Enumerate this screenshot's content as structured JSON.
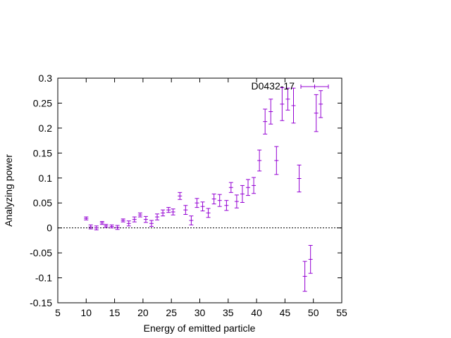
{
  "chart_data": {
    "type": "scatter",
    "xlabel": "Energy of emitted particle",
    "ylabel": "Analyzing power",
    "xlim": [
      5,
      55
    ],
    "ylim": [
      -0.15,
      0.3
    ],
    "xticks": [
      5,
      10,
      15,
      20,
      25,
      30,
      35,
      40,
      45,
      50,
      55
    ],
    "yticks": [
      -0.15,
      -0.1,
      -0.05,
      0,
      0.05,
      0.1,
      0.15,
      0.2,
      0.25,
      0.3
    ],
    "xtick_labels": [
      "5",
      "10",
      "15",
      "20",
      "25",
      "30",
      "35",
      "40",
      "45",
      "50",
      "55"
    ],
    "ytick_labels": [
      "-0.15",
      "-0.1",
      "-0.05",
      "0",
      "0.05",
      "0.1",
      "0.15",
      "0.2",
      "0.25",
      "0.3"
    ],
    "grid": false,
    "zero_line": true,
    "legend_position": "top-right",
    "series_color": "#9400d3",
    "series": [
      {
        "name": "D0432-17",
        "points": [
          {
            "x": 10.0,
            "y": 0.019,
            "err": 0.003
          },
          {
            "x": 10.8,
            "y": 0.002,
            "err": 0.004
          },
          {
            "x": 11.8,
            "y": 0.0,
            "err": 0.004
          },
          {
            "x": 12.8,
            "y": 0.01,
            "err": 0.003
          },
          {
            "x": 13.5,
            "y": 0.004,
            "err": 0.003
          },
          {
            "x": 14.5,
            "y": 0.003,
            "err": 0.003
          },
          {
            "x": 15.5,
            "y": 0.001,
            "err": 0.004
          },
          {
            "x": 16.5,
            "y": 0.015,
            "err": 0.003
          },
          {
            "x": 17.5,
            "y": 0.009,
            "err": 0.005
          },
          {
            "x": 18.5,
            "y": 0.017,
            "err": 0.005
          },
          {
            "x": 19.5,
            "y": 0.026,
            "err": 0.004
          },
          {
            "x": 20.5,
            "y": 0.017,
            "err": 0.006
          },
          {
            "x": 21.5,
            "y": 0.009,
            "err": 0.006
          },
          {
            "x": 22.5,
            "y": 0.022,
            "err": 0.006
          },
          {
            "x": 23.5,
            "y": 0.03,
            "err": 0.006
          },
          {
            "x": 24.5,
            "y": 0.036,
            "err": 0.005
          },
          {
            "x": 25.3,
            "y": 0.032,
            "err": 0.006
          },
          {
            "x": 26.5,
            "y": 0.064,
            "err": 0.007
          },
          {
            "x": 27.5,
            "y": 0.036,
            "err": 0.009
          },
          {
            "x": 28.5,
            "y": 0.015,
            "err": 0.009
          },
          {
            "x": 29.5,
            "y": 0.05,
            "err": 0.009
          },
          {
            "x": 30.5,
            "y": 0.043,
            "err": 0.009
          },
          {
            "x": 31.5,
            "y": 0.03,
            "err": 0.009
          },
          {
            "x": 32.5,
            "y": 0.058,
            "err": 0.01
          },
          {
            "x": 33.5,
            "y": 0.055,
            "err": 0.012
          },
          {
            "x": 34.7,
            "y": 0.045,
            "err": 0.01
          },
          {
            "x": 35.5,
            "y": 0.081,
            "err": 0.01
          },
          {
            "x": 36.5,
            "y": 0.053,
            "err": 0.013
          },
          {
            "x": 37.5,
            "y": 0.068,
            "err": 0.017
          },
          {
            "x": 38.5,
            "y": 0.081,
            "err": 0.016
          },
          {
            "x": 39.5,
            "y": 0.085,
            "err": 0.016
          },
          {
            "x": 40.5,
            "y": 0.135,
            "err": 0.021
          },
          {
            "x": 41.5,
            "y": 0.213,
            "err": 0.025
          },
          {
            "x": 42.5,
            "y": 0.233,
            "err": 0.025
          },
          {
            "x": 43.5,
            "y": 0.135,
            "err": 0.028
          },
          {
            "x": 44.5,
            "y": 0.248,
            "err": 0.033
          },
          {
            "x": 45.5,
            "y": 0.258,
            "err": 0.022
          },
          {
            "x": 46.5,
            "y": 0.245,
            "err": 0.035
          },
          {
            "x": 47.5,
            "y": 0.099,
            "err": 0.027
          },
          {
            "x": 48.5,
            "y": -0.097,
            "err": 0.03
          },
          {
            "x": 49.5,
            "y": -0.063,
            "err": 0.028
          },
          {
            "x": 50.5,
            "y": 0.23,
            "err": 0.037
          },
          {
            "x": 51.3,
            "y": 0.248,
            "err": 0.027
          }
        ]
      }
    ]
  }
}
